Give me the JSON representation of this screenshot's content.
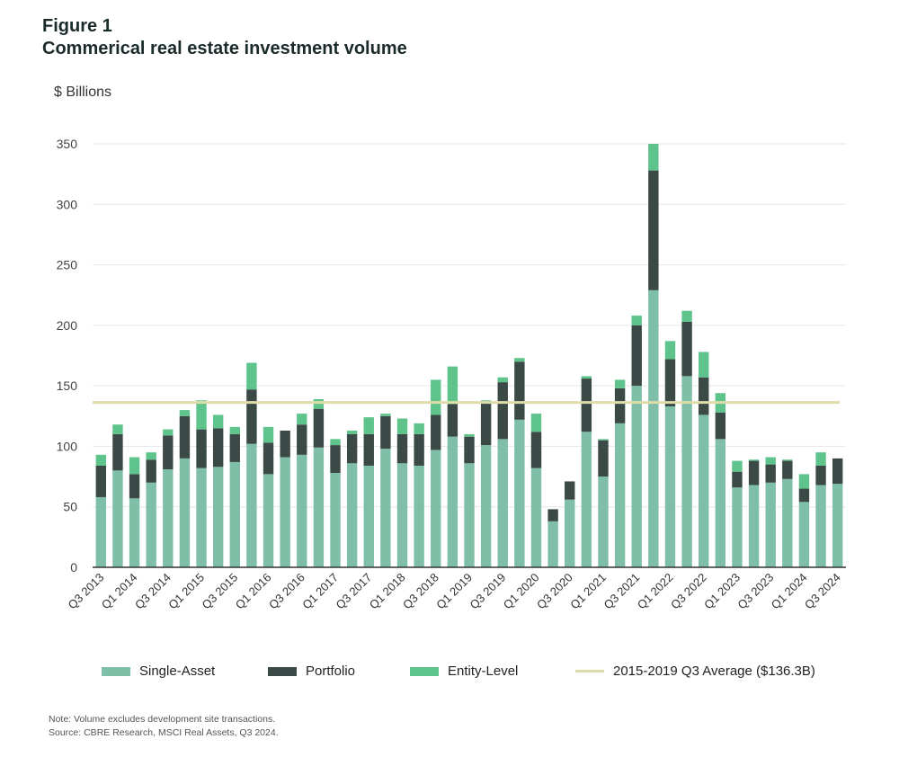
{
  "figure_label": "Figure 1",
  "title": "Commerical real estate investment volume",
  "unit_label": "$ Billions",
  "notes": {
    "note": "Note: Volume excludes development site transactions.",
    "source": "Source: CBRE Research, MSCI Real Assets, Q3 2024."
  },
  "legend": {
    "single_asset": "Single-Asset",
    "portfolio": "Portfolio",
    "entity_level": "Entity-Level",
    "average": "2015-2019 Q3 Average ($136.3B)"
  },
  "chart_data": {
    "type": "bar",
    "stacked": true,
    "ylabel": "$ Billions",
    "ylim": [
      0,
      350
    ],
    "yticks": [
      0,
      50,
      100,
      150,
      200,
      250,
      300,
      350
    ],
    "grid": true,
    "legend_position": "bottom",
    "categories": [
      "Q3 2013",
      "Q4 2013",
      "Q1 2014",
      "Q2 2014",
      "Q3 2014",
      "Q4 2014",
      "Q1 2015",
      "Q2 2015",
      "Q3 2015",
      "Q4 2015",
      "Q1 2016",
      "Q2 2016",
      "Q3 2016",
      "Q4 2016",
      "Q1 2017",
      "Q2 2017",
      "Q3 2017",
      "Q4 2017",
      "Q1 2018",
      "Q2 2018",
      "Q3 2018",
      "Q4 2018",
      "Q1 2019",
      "Q2 2019",
      "Q3 2019",
      "Q4 2019",
      "Q1 2020",
      "Q2 2020",
      "Q3 2020",
      "Q4 2020",
      "Q1 2021",
      "Q2 2021",
      "Q3 2021",
      "Q4 2021",
      "Q1 2022",
      "Q2 2022",
      "Q3 2022",
      "Q4 2022",
      "Q1 2023",
      "Q2 2023",
      "Q3 2023",
      "Q4 2023",
      "Q1 2024",
      "Q2 2024",
      "Q3 2024"
    ],
    "tick_labels": [
      "Q3 2013",
      "Q1 2014",
      "Q3 2014",
      "Q1 2015",
      "Q3 2015",
      "Q1 2016",
      "Q3 2016",
      "Q1 2017",
      "Q3 2017",
      "Q1 2018",
      "Q3 2018",
      "Q1 2019",
      "Q3 2019",
      "Q1 2020",
      "Q3 2020",
      "Q1 2021",
      "Q3 2021",
      "Q1 2022",
      "Q3 2022",
      "Q1 2023",
      "Q3 2023",
      "Q1 2024",
      "Q3 2024"
    ],
    "series": [
      {
        "name": "Single-Asset",
        "color": "#7fbfa8",
        "values": [
          58,
          80,
          57,
          70,
          81,
          90,
          82,
          83,
          87,
          102,
          77,
          91,
          93,
          99,
          78,
          86,
          84,
          98,
          86,
          84,
          97,
          108,
          86,
          101,
          106,
          122,
          82,
          38,
          56,
          112,
          75,
          119,
          150,
          229,
          133,
          158,
          126,
          106,
          66,
          68,
          70,
          73,
          54,
          68,
          69
        ]
      },
      {
        "name": "Portfolio",
        "color": "#3c4a47",
        "values": [
          26,
          30,
          20,
          19,
          28,
          35,
          32,
          32,
          23,
          45,
          26,
          22,
          25,
          32,
          23,
          24,
          26,
          27,
          24,
          26,
          29,
          27,
          22,
          35,
          47,
          48,
          30,
          10,
          15,
          44,
          30,
          29,
          50,
          99,
          39,
          45,
          31,
          22,
          13,
          20,
          15,
          15,
          11,
          16,
          21
        ]
      },
      {
        "name": "Entity-Level",
        "color": "#5fc48c",
        "values": [
          9,
          8,
          14,
          6,
          5,
          5,
          24,
          11,
          6,
          22,
          13,
          0,
          9,
          8,
          5,
          3,
          14,
          2,
          13,
          9,
          29,
          31,
          2,
          2,
          4,
          3,
          15,
          0,
          0,
          2,
          1,
          7,
          8,
          22,
          15,
          9,
          21,
          16,
          9,
          1,
          6,
          1,
          12,
          11,
          0
        ]
      }
    ],
    "reference_line": {
      "name": "2015-2019 Q3 Average ($136.3B)",
      "value": 136.3,
      "color": "#dedcaa"
    }
  }
}
